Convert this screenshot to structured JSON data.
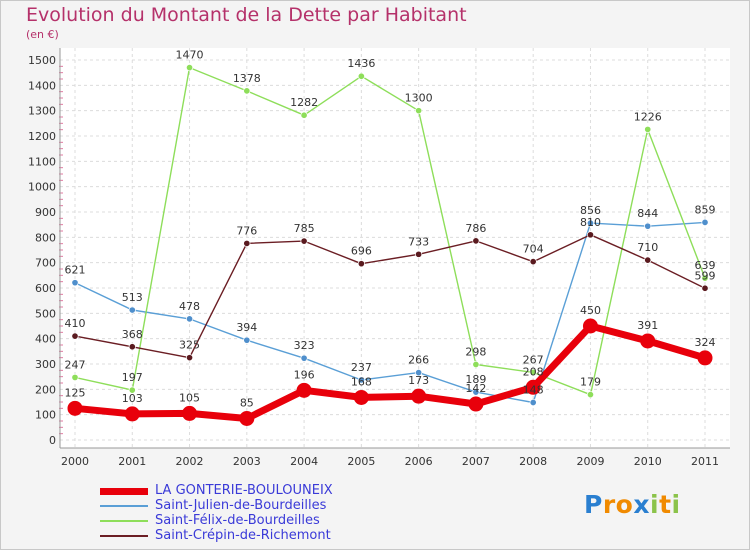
{
  "chart_data": {
    "type": "line",
    "title": "Evolution du Montant de la Dette par Habitant",
    "subtitle": "(en €)",
    "categories": [
      "2000",
      "2001",
      "2002",
      "2003",
      "2004",
      "2005",
      "2006",
      "2007",
      "2008",
      "2009",
      "2010",
      "2011"
    ],
    "ylim": [
      0,
      1500
    ],
    "yticks": [
      0,
      100,
      200,
      300,
      400,
      500,
      600,
      700,
      800,
      900,
      1000,
      1100,
      1200,
      1300,
      1400,
      1500
    ],
    "grid": true,
    "legend_position": "bottom",
    "series": [
      {
        "name": "LA GONTERIE-BOULOUNEIX",
        "color": "#e8000b",
        "values": [
          125,
          103,
          105,
          85,
          196,
          168,
          173,
          142,
          208,
          450,
          391,
          324
        ]
      },
      {
        "name": "Saint-Julien-de-Bourdeilles",
        "color": "#5a9fd6",
        "values": [
          621,
          513,
          478,
          394,
          323,
          237,
          266,
          189,
          148,
          856,
          844,
          859
        ]
      },
      {
        "name": "Saint-Félix-de-Bourdeilles",
        "color": "#8ede5a",
        "values": [
          247,
          197,
          1470,
          1378,
          1282,
          1436,
          1300,
          298,
          267,
          179,
          1226,
          639
        ]
      },
      {
        "name": "Saint-Crépin-de-Richemont",
        "color": "#6b1e24",
        "values": [
          410,
          368,
          325,
          776,
          785,
          696,
          733,
          786,
          704,
          810,
          710,
          599
        ]
      }
    ],
    "data_labels": [
      {
        "series": 0,
        "labels": [
          "125",
          "103",
          "105",
          "85",
          "196",
          "168",
          "173",
          "142",
          "208",
          "450",
          "391",
          "324"
        ]
      },
      {
        "series": 1,
        "labels": [
          "621",
          "513",
          "478",
          "394",
          "323",
          "237",
          "266",
          "189",
          "148",
          "856",
          "844",
          "859"
        ]
      },
      {
        "series": 2,
        "labels": [
          "247",
          "197",
          "1470",
          "1378",
          "1282",
          "1436",
          "1300",
          "298",
          "267",
          "179",
          "1226",
          "639"
        ]
      },
      {
        "series": 3,
        "labels": [
          "410",
          "368",
          "325",
          "776",
          "785",
          "696",
          "733",
          "786",
          "704",
          "810",
          "710",
          "599"
        ]
      }
    ]
  },
  "logo": {
    "letters": [
      "P",
      "r",
      "o",
      "x",
      "i",
      "t",
      "i"
    ],
    "colors": [
      "#2a7fd0",
      "#f08a00",
      "#f08a00",
      "#2a7fd0",
      "#8bc34a",
      "#f08a00",
      "#8bc34a"
    ]
  }
}
